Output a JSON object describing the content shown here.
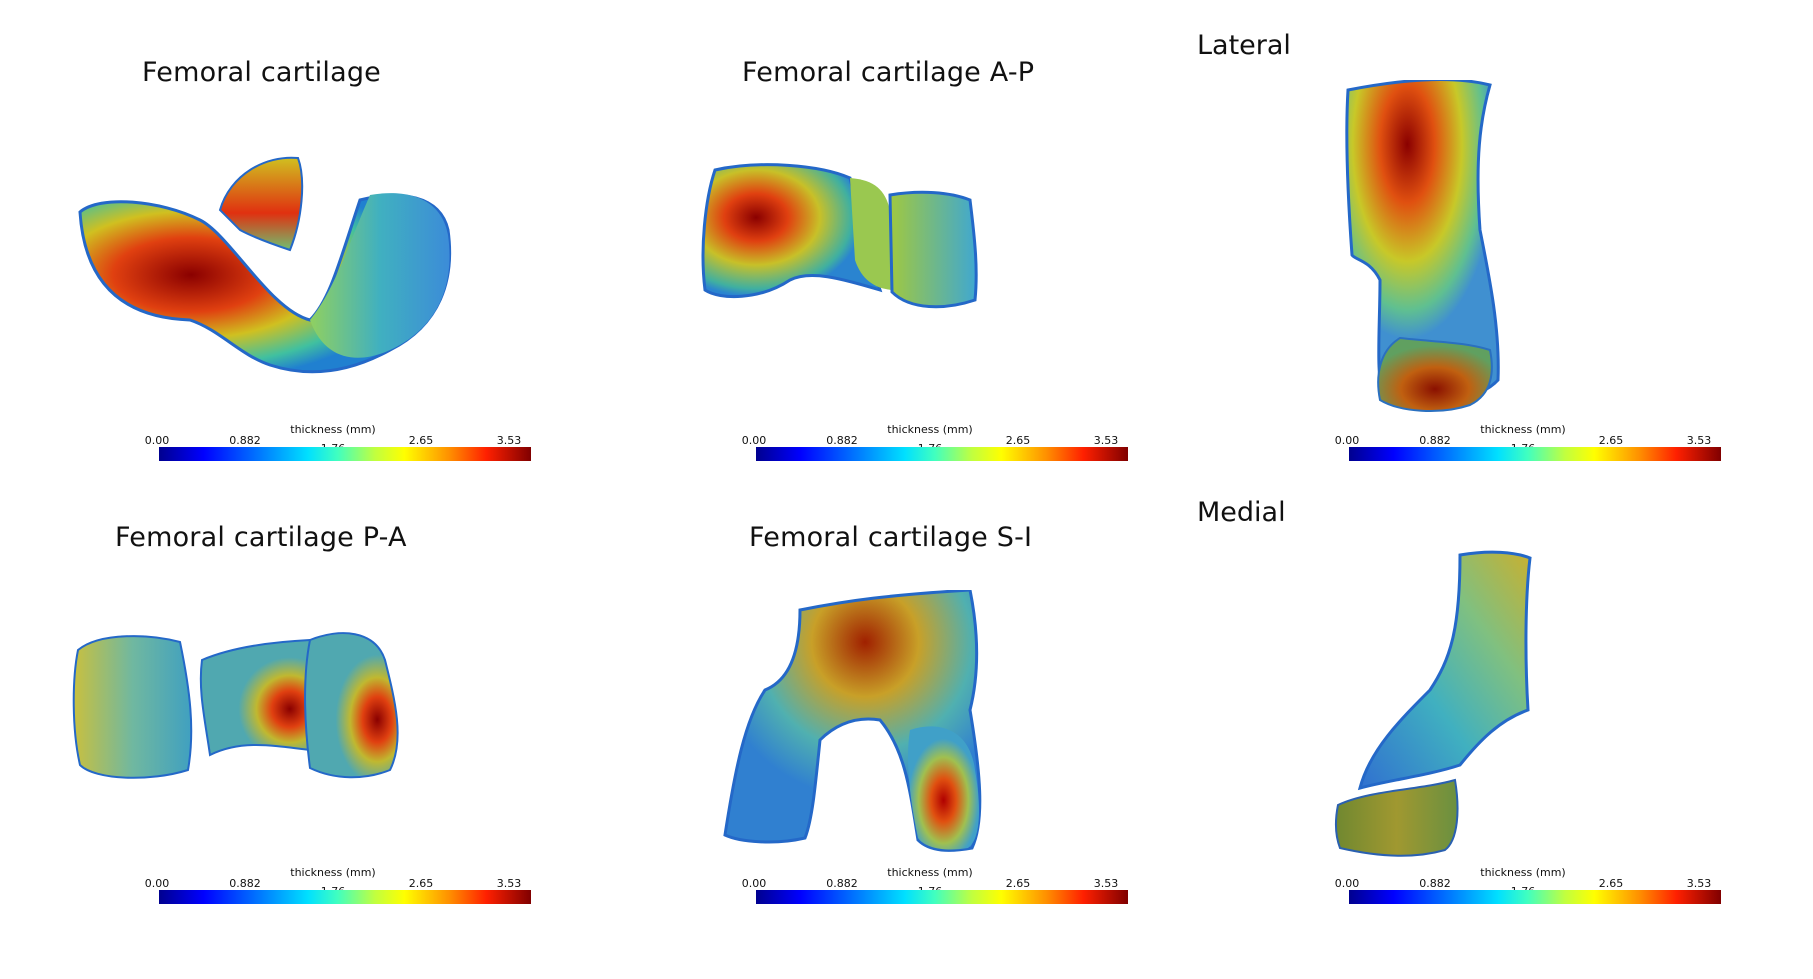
{
  "panels": [
    {
      "id": "fc",
      "title": "Femoral cartilage"
    },
    {
      "id": "fc-ap",
      "title": "Femoral cartilage A-P"
    },
    {
      "id": "fc-pa",
      "title": "Femoral cartilage P-A"
    },
    {
      "id": "fc-si",
      "title": "Femoral cartilage S-I"
    }
  ],
  "side_labels": {
    "lateral": "Lateral",
    "medial": "Medial"
  },
  "colorbar": {
    "title": "thickness (mm)",
    "ticks": [
      "0.00",
      "0.882",
      "1.76",
      "2.65",
      "3.53"
    ],
    "colormap": "jet"
  },
  "colors": {
    "low": "#00008f",
    "mid": "#40ffc0",
    "high": "#800000"
  }
}
